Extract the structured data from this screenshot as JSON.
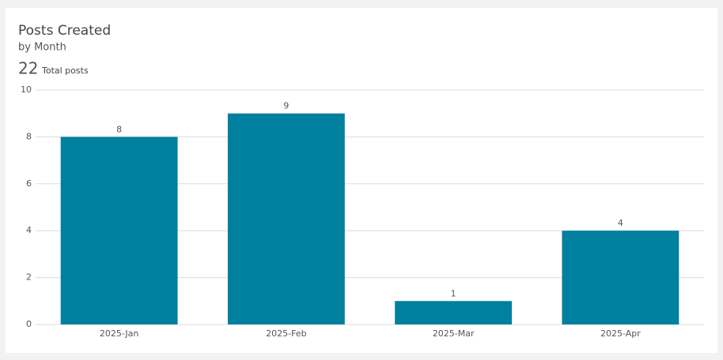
{
  "chart_data": {
    "type": "bar",
    "title": "Posts Created",
    "subtitle": "by Month",
    "total": 22,
    "total_label": "Total posts",
    "categories": [
      "2025-Jan",
      "2025-Feb",
      "2025-Mar",
      "2025-Apr"
    ],
    "values": [
      8,
      9,
      1,
      4
    ],
    "color": "#00809f",
    "ylim": [
      0,
      10
    ],
    "yticks": [
      0,
      2,
      4,
      6,
      8,
      10
    ],
    "grid": true
  }
}
